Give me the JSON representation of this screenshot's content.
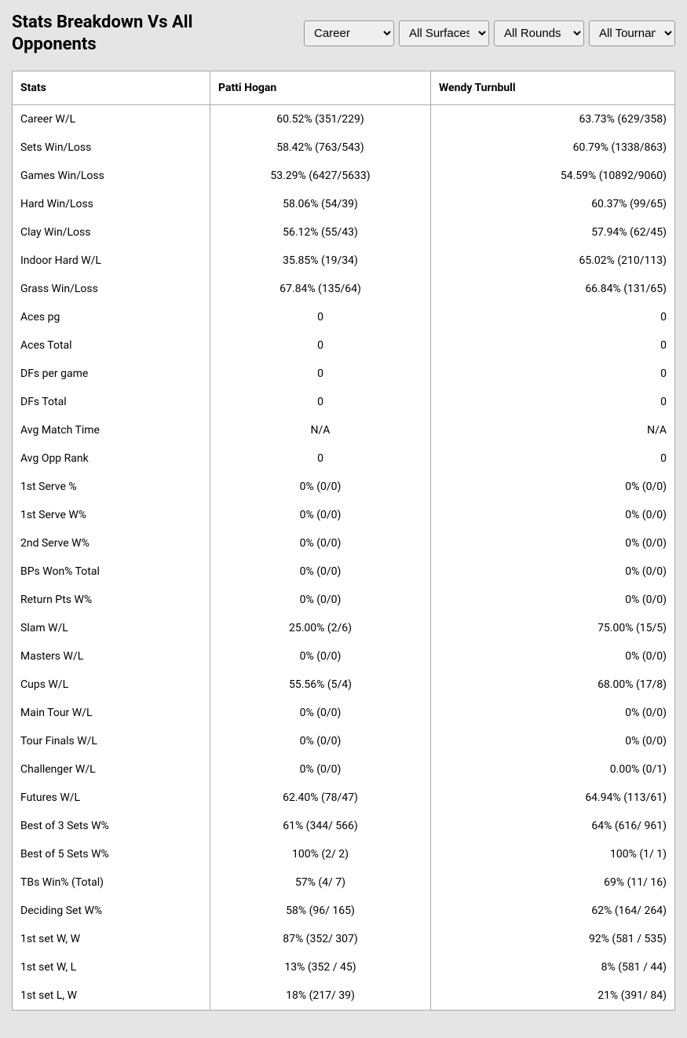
{
  "header": {
    "title": "Stats Breakdown Vs All Opponents"
  },
  "filters": {
    "career": "Career",
    "surface": "All Surfaces",
    "rounds": "All Rounds",
    "tournaments": "All Tournaments"
  },
  "table": {
    "columns": [
      "Stats",
      "Patti Hogan",
      "Wendy Turnbull"
    ],
    "rows": [
      [
        "Career W/L",
        "60.52% (351/229)",
        "63.73% (629/358)"
      ],
      [
        "Sets Win/Loss",
        "58.42% (763/543)",
        "60.79% (1338/863)"
      ],
      [
        "Games Win/Loss",
        "53.29% (6427/5633)",
        "54.59% (10892/9060)"
      ],
      [
        "Hard Win/Loss",
        "58.06% (54/39)",
        "60.37% (99/65)"
      ],
      [
        "Clay Win/Loss",
        "56.12% (55/43)",
        "57.94% (62/45)"
      ],
      [
        "Indoor Hard W/L",
        "35.85% (19/34)",
        "65.02% (210/113)"
      ],
      [
        "Grass Win/Loss",
        "67.84% (135/64)",
        "66.84% (131/65)"
      ],
      [
        "Aces pg",
        "0",
        "0"
      ],
      [
        "Aces Total",
        "0",
        "0"
      ],
      [
        "DFs per game",
        "0",
        "0"
      ],
      [
        "DFs Total",
        "0",
        "0"
      ],
      [
        "Avg Match Time",
        "N/A",
        "N/A"
      ],
      [
        "Avg Opp Rank",
        "0",
        "0"
      ],
      [
        "1st Serve %",
        "0% (0/0)",
        "0% (0/0)"
      ],
      [
        "1st Serve W%",
        "0% (0/0)",
        "0% (0/0)"
      ],
      [
        "2nd Serve W%",
        "0% (0/0)",
        "0% (0/0)"
      ],
      [
        "BPs Won% Total",
        "0% (0/0)",
        "0% (0/0)"
      ],
      [
        "Return Pts W%",
        "0% (0/0)",
        "0% (0/0)"
      ],
      [
        "Slam W/L",
        "25.00% (2/6)",
        "75.00% (15/5)"
      ],
      [
        "Masters W/L",
        "0% (0/0)",
        "0% (0/0)"
      ],
      [
        "Cups W/L",
        "55.56% (5/4)",
        "68.00% (17/8)"
      ],
      [
        "Main Tour W/L",
        "0% (0/0)",
        "0% (0/0)"
      ],
      [
        "Tour Finals W/L",
        "0% (0/0)",
        "0% (0/0)"
      ],
      [
        "Challenger W/L",
        "0% (0/0)",
        "0.00% (0/1)"
      ],
      [
        "Futures W/L",
        "62.40% (78/47)",
        "64.94% (113/61)"
      ],
      [
        "Best of 3 Sets W%",
        "61% (344/ 566)",
        "64% (616/ 961)"
      ],
      [
        "Best of 5 Sets W%",
        "100% (2/ 2)",
        "100% (1/ 1)"
      ],
      [
        "TBs Win% (Total)",
        "57% (4/ 7)",
        "69% (11/ 16)"
      ],
      [
        "Deciding Set W%",
        "58% (96/ 165)",
        "62% (164/ 264)"
      ],
      [
        "1st set W, W",
        "87% (352/ 307)",
        "92% (581 / 535)"
      ],
      [
        "1st set W, L",
        "13% (352 / 45)",
        "8% (581 / 44)"
      ],
      [
        "1st set L, W",
        "18% (217/ 39)",
        "21% (391/ 84)"
      ]
    ]
  }
}
